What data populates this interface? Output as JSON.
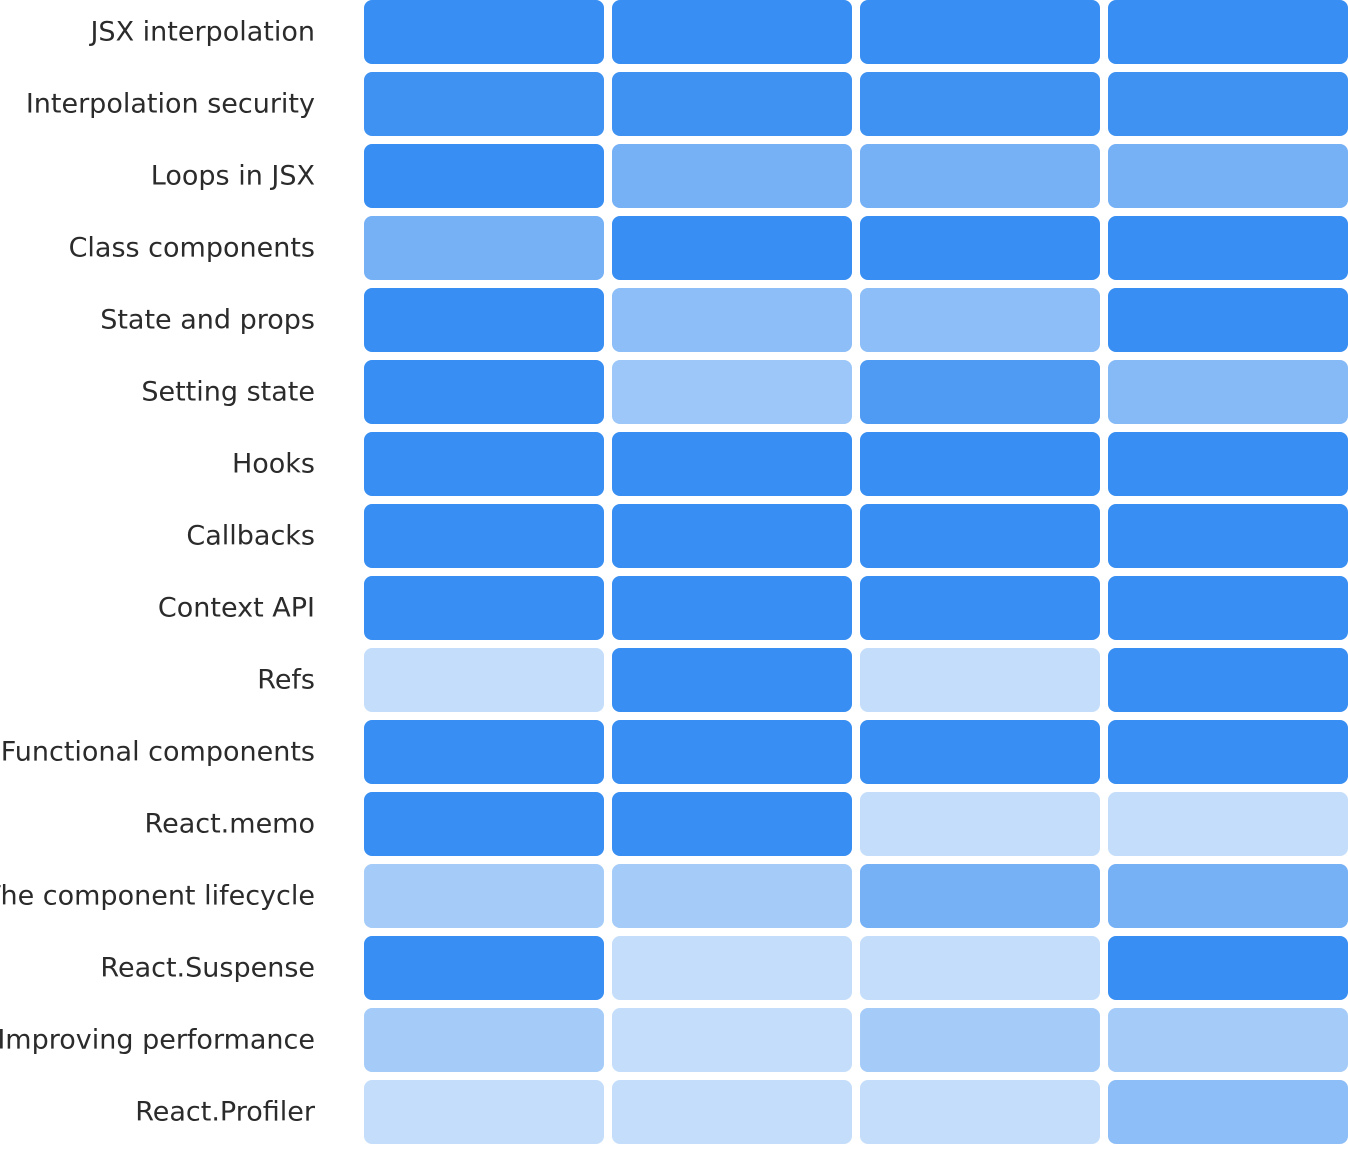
{
  "chart_data": {
    "type": "heatmap",
    "title": "",
    "xlabel": "",
    "ylabel": "",
    "rows": [
      "JSX interpolation",
      "Interpolation security",
      "Loops in JSX",
      "Class components",
      "State and props",
      "Setting state",
      "Hooks",
      "Callbacks",
      "Context API",
      "Refs",
      "Functional components",
      "React.memo",
      "The component lifecycle",
      "React.Suspense",
      "Improving performance",
      "React.Profiler"
    ],
    "columns": [
      "",
      "",
      "",
      ""
    ],
    "values": [
      [
        1.0,
        1.0,
        1.0,
        1.0
      ],
      [
        0.95,
        0.95,
        0.95,
        0.95
      ],
      [
        1.0,
        0.6,
        0.6,
        0.6
      ],
      [
        0.6,
        1.0,
        1.0,
        1.0
      ],
      [
        1.0,
        0.45,
        0.45,
        1.0
      ],
      [
        1.0,
        0.35,
        0.85,
        0.5
      ],
      [
        1.0,
        1.0,
        1.0,
        1.0
      ],
      [
        1.0,
        1.0,
        1.0,
        1.0
      ],
      [
        1.0,
        1.0,
        1.0,
        1.0
      ],
      [
        0.1,
        1.0,
        0.1,
        1.0
      ],
      [
        1.0,
        1.0,
        1.0,
        1.0
      ],
      [
        1.0,
        1.0,
        0.1,
        0.1
      ],
      [
        0.3,
        0.3,
        0.6,
        0.6
      ],
      [
        1.0,
        0.1,
        0.1,
        1.0
      ],
      [
        0.3,
        0.1,
        0.3,
        0.3
      ],
      [
        0.1,
        0.1,
        0.1,
        0.45
      ]
    ],
    "colors": {
      "low": "#d3e6fb",
      "high": "#388ef2",
      "label": "#2b2b2b",
      "background": "#ffffff"
    },
    "legend": "none",
    "grid": false
  }
}
